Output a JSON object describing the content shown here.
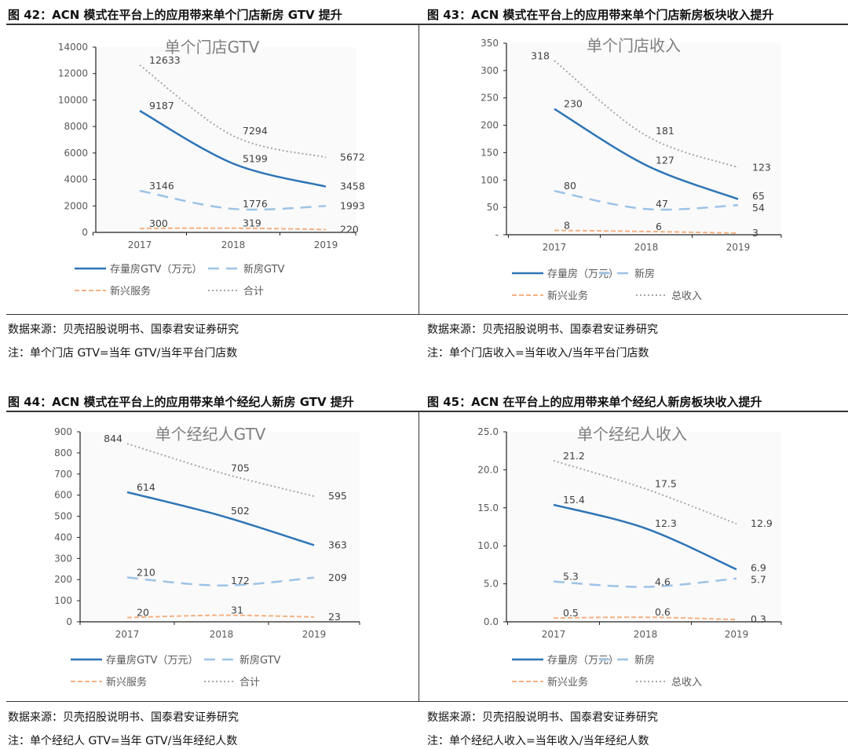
{
  "panels": [
    {
      "title": "图 42：ACN 模式在平台上的应用带来单个门店新房 GTV 提升",
      "source": "数据来源：贝壳招股说明书、国泰君安证券研究",
      "note": "注：单个门店 GTV=当年 GTV/当年平台门店数"
    },
    {
      "title": "图 43：ACN 模式在平台上的应用带来单个门店新房板块收入提升",
      "source": "数据来源：贝壳招股说明书、国泰君安证券研究",
      "note": "注：单个门店收入=当年收入/当年平台门店数"
    },
    {
      "title": "图 44：ACN 模式在平台上的应用带来单个经纪人新房 GTV 提升",
      "source": "数据来源：贝壳招股说明书、国泰君安证券研究",
      "note": "注：单个经纪人 GTV=当年 GTV/当年经纪人数"
    },
    {
      "title": "图 45：ACN 在平台上的应用带来单个经纪人新房板块收入提升",
      "source": "数据来源：贝壳招股说明书、国泰君安证券研究",
      "note": "注：单个经纪人收入=当年收入/当年经纪人数"
    }
  ],
  "colors": {
    "existing": "#2E75B6",
    "new": "#9DC3E6",
    "emerging": "#F4B183",
    "total": "#A6A6A6"
  },
  "chart_data": [
    {
      "type": "line",
      "title": "单个门店GTV",
      "categories": [
        "2017",
        "2018",
        "2019"
      ],
      "ylim": [
        0,
        14000
      ],
      "yticks": [
        "0",
        "2000",
        "4000",
        "6000",
        "8000",
        "10000",
        "12000",
        "14000"
      ],
      "grid": false,
      "legend": "bottom",
      "series": [
        {
          "name": "存量房GTV（万元）",
          "values": [
            9187,
            5199,
            3458
          ],
          "labels": [
            "9187",
            "5199",
            "3458"
          ]
        },
        {
          "name": "新房GTV",
          "values": [
            3146,
            1776,
            1993
          ],
          "labels": [
            "3146",
            "1776",
            "1993"
          ]
        },
        {
          "name": "新兴服务",
          "values": [
            300,
            319,
            220
          ],
          "labels": [
            "300",
            "319",
            "220"
          ]
        },
        {
          "name": "合计",
          "values": [
            12633,
            7294,
            5672
          ],
          "labels": [
            "12633",
            "7294",
            "5672"
          ]
        }
      ]
    },
    {
      "type": "line",
      "title": "单个门店收入",
      "categories": [
        "2017",
        "2018",
        "2019"
      ],
      "ylim": [
        0,
        350
      ],
      "yticks": [
        "-",
        "50",
        "100",
        "150",
        "200",
        "250",
        "300",
        "350"
      ],
      "grid": false,
      "legend": "bottom",
      "series": [
        {
          "name": "存量房（万元）",
          "values": [
            230,
            127,
            65
          ],
          "labels": [
            "230",
            "127",
            "65"
          ]
        },
        {
          "name": "新房",
          "values": [
            80,
            47,
            54
          ],
          "labels": [
            "80",
            "47",
            "54"
          ]
        },
        {
          "name": "新兴业务",
          "values": [
            8,
            6,
            3
          ],
          "labels": [
            "8",
            "6",
            "3"
          ]
        },
        {
          "name": "总收入",
          "values": [
            318,
            181,
            123
          ],
          "labels": [
            "318",
            "181",
            "123"
          ]
        }
      ]
    },
    {
      "type": "line",
      "title": "单个经纪人GTV",
      "categories": [
        "2017",
        "2018",
        "2019"
      ],
      "ylim": [
        0,
        900
      ],
      "yticks": [
        "0",
        "100",
        "200",
        "300",
        "400",
        "500",
        "600",
        "700",
        "800",
        "900"
      ],
      "grid": false,
      "legend": "bottom",
      "series": [
        {
          "name": "存量房GTV（万元）",
          "values": [
            614,
            502,
            363
          ],
          "labels": [
            "614",
            "502",
            "363"
          ]
        },
        {
          "name": "新房GTV",
          "values": [
            210,
            172,
            209
          ],
          "labels": [
            "210",
            "172",
            "209"
          ]
        },
        {
          "name": "新兴服务",
          "values": [
            20,
            31,
            23
          ],
          "labels": [
            "20",
            "31",
            "23"
          ]
        },
        {
          "name": "合计",
          "values": [
            844,
            705,
            595
          ],
          "labels": [
            "844",
            "705",
            "595"
          ]
        }
      ]
    },
    {
      "type": "line",
      "title": "单个经纪人收入",
      "categories": [
        "2017",
        "2018",
        "2019"
      ],
      "ylim": [
        0,
        25
      ],
      "yticks": [
        "0.0",
        "5.0",
        "10.0",
        "15.0",
        "20.0",
        "25.0"
      ],
      "grid": false,
      "legend": "bottom",
      "series": [
        {
          "name": "存量房（万元）",
          "values": [
            15.4,
            12.3,
            6.9
          ],
          "labels": [
            "15.4",
            "12.3",
            "6.9"
          ]
        },
        {
          "name": "新房",
          "values": [
            5.3,
            4.6,
            5.7
          ],
          "labels": [
            "5.3",
            "4.6",
            "5.7"
          ]
        },
        {
          "name": "新兴业务",
          "values": [
            0.5,
            0.6,
            0.3
          ],
          "labels": [
            "0.5",
            "0.6",
            "0.3"
          ]
        },
        {
          "name": "总收入",
          "values": [
            21.2,
            17.5,
            12.9
          ],
          "labels": [
            "21.2",
            "17.5",
            "12.9"
          ]
        }
      ]
    }
  ]
}
